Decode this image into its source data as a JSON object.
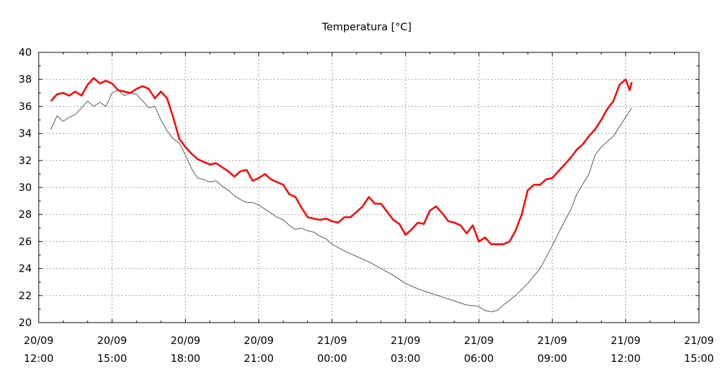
{
  "chart_data": {
    "type": "line",
    "title": "Temperatura [°C]",
    "xlabel": "",
    "ylabel": "",
    "ylim": [
      20,
      40
    ],
    "yticks": [
      20,
      22,
      24,
      26,
      28,
      30,
      32,
      34,
      36,
      38,
      40
    ],
    "xlim": [
      "2023-09-20T12:00",
      "2023-09-21T15:00"
    ],
    "xticks": [
      {
        "t": "2023-09-20T12:00",
        "line1": "20/09",
        "line2": "12:00"
      },
      {
        "t": "2023-09-20T15:00",
        "line1": "20/09",
        "line2": "15:00"
      },
      {
        "t": "2023-09-20T18:00",
        "line1": "20/09",
        "line2": "18:00"
      },
      {
        "t": "2023-09-20T21:00",
        "line1": "20/09",
        "line2": "21:00"
      },
      {
        "t": "2023-09-21T00:00",
        "line1": "21/09",
        "line2": "00:00"
      },
      {
        "t": "2023-09-21T03:00",
        "line1": "21/09",
        "line2": "03:00"
      },
      {
        "t": "2023-09-21T06:00",
        "line1": "21/09",
        "line2": "06:00"
      },
      {
        "t": "2023-09-21T09:00",
        "line1": "21/09",
        "line2": "09:00"
      },
      {
        "t": "2023-09-21T12:00",
        "line1": "21/09",
        "line2": "12:00"
      },
      {
        "t": "2023-09-21T15:00",
        "line1": "21/09",
        "line2": "15:00"
      }
    ],
    "grid": true,
    "series": [
      {
        "color": "#ff0000",
        "points": [
          [
            "2023-09-20T12:30",
            36.4
          ],
          [
            "2023-09-20T12:45",
            36.9
          ],
          [
            "2023-09-20T13:00",
            37.0
          ],
          [
            "2023-09-20T13:15",
            36.8
          ],
          [
            "2023-09-20T13:30",
            37.1
          ],
          [
            "2023-09-20T13:45",
            36.8
          ],
          [
            "2023-09-20T14:00",
            37.6
          ],
          [
            "2023-09-20T14:15",
            38.1
          ],
          [
            "2023-09-20T14:30",
            37.7
          ],
          [
            "2023-09-20T14:45",
            37.9
          ],
          [
            "2023-09-20T15:00",
            37.7
          ],
          [
            "2023-09-20T15:15",
            37.2
          ],
          [
            "2023-09-20T15:30",
            37.1
          ],
          [
            "2023-09-20T15:45",
            37.0
          ],
          [
            "2023-09-20T16:00",
            37.3
          ],
          [
            "2023-09-20T16:15",
            37.5
          ],
          [
            "2023-09-20T16:30",
            37.3
          ],
          [
            "2023-09-20T16:45",
            36.6
          ],
          [
            "2023-09-20T17:00",
            37.1
          ],
          [
            "2023-09-20T17:15",
            36.6
          ],
          [
            "2023-09-20T17:30",
            35.2
          ],
          [
            "2023-09-20T17:45",
            33.6
          ],
          [
            "2023-09-20T18:00",
            33.0
          ],
          [
            "2023-09-20T18:15",
            32.5
          ],
          [
            "2023-09-20T18:30",
            32.1
          ],
          [
            "2023-09-20T18:45",
            31.9
          ],
          [
            "2023-09-20T19:00",
            31.7
          ],
          [
            "2023-09-20T19:15",
            31.8
          ],
          [
            "2023-09-20T19:30",
            31.5
          ],
          [
            "2023-09-20T19:45",
            31.2
          ],
          [
            "2023-09-20T20:00",
            30.8
          ],
          [
            "2023-09-20T20:15",
            31.2
          ],
          [
            "2023-09-20T20:30",
            31.3
          ],
          [
            "2023-09-20T20:45",
            30.5
          ],
          [
            "2023-09-20T21:00",
            30.7
          ],
          [
            "2023-09-20T21:15",
            31.0
          ],
          [
            "2023-09-20T21:30",
            30.6
          ],
          [
            "2023-09-20T21:45",
            30.4
          ],
          [
            "2023-09-20T22:00",
            30.2
          ],
          [
            "2023-09-20T22:15",
            29.5
          ],
          [
            "2023-09-20T22:30",
            29.3
          ],
          [
            "2023-09-20T22:45",
            28.5
          ],
          [
            "2023-09-20T23:00",
            27.8
          ],
          [
            "2023-09-20T23:15",
            27.7
          ],
          [
            "2023-09-20T23:30",
            27.6
          ],
          [
            "2023-09-20T23:45",
            27.7
          ],
          [
            "2023-09-21T00:00",
            27.5
          ],
          [
            "2023-09-21T00:15",
            27.4
          ],
          [
            "2023-09-21T00:30",
            27.8
          ],
          [
            "2023-09-21T00:45",
            27.8
          ],
          [
            "2023-09-21T01:00",
            28.2
          ],
          [
            "2023-09-21T01:15",
            28.6
          ],
          [
            "2023-09-21T01:30",
            29.3
          ],
          [
            "2023-09-21T01:45",
            28.8
          ],
          [
            "2023-09-21T02:00",
            28.8
          ],
          [
            "2023-09-21T02:15",
            28.2
          ],
          [
            "2023-09-21T02:30",
            27.6
          ],
          [
            "2023-09-21T02:45",
            27.3
          ],
          [
            "2023-09-21T03:00",
            26.5
          ],
          [
            "2023-09-21T03:15",
            26.9
          ],
          [
            "2023-09-21T03:30",
            27.4
          ],
          [
            "2023-09-21T03:45",
            27.3
          ],
          [
            "2023-09-21T04:00",
            28.3
          ],
          [
            "2023-09-21T04:15",
            28.6
          ],
          [
            "2023-09-21T04:30",
            28.1
          ],
          [
            "2023-09-21T04:45",
            27.5
          ],
          [
            "2023-09-21T05:00",
            27.4
          ],
          [
            "2023-09-21T05:15",
            27.2
          ],
          [
            "2023-09-21T05:30",
            26.6
          ],
          [
            "2023-09-21T05:45",
            27.2
          ],
          [
            "2023-09-21T06:00",
            26.0
          ],
          [
            "2023-09-21T06:15",
            26.3
          ],
          [
            "2023-09-21T06:30",
            25.8
          ],
          [
            "2023-09-21T06:45",
            25.8
          ],
          [
            "2023-09-21T07:00",
            25.8
          ],
          [
            "2023-09-21T07:15",
            26.0
          ],
          [
            "2023-09-21T07:30",
            26.8
          ],
          [
            "2023-09-21T07:45",
            28.0
          ],
          [
            "2023-09-21T08:00",
            29.8
          ],
          [
            "2023-09-21T08:15",
            30.2
          ],
          [
            "2023-09-21T08:30",
            30.2
          ],
          [
            "2023-09-21T08:45",
            30.6
          ],
          [
            "2023-09-21T09:00",
            30.7
          ],
          [
            "2023-09-21T09:15",
            31.2
          ],
          [
            "2023-09-21T09:30",
            31.7
          ],
          [
            "2023-09-21T09:45",
            32.2
          ],
          [
            "2023-09-21T10:00",
            32.8
          ],
          [
            "2023-09-21T10:15",
            33.2
          ],
          [
            "2023-09-21T10:30",
            33.8
          ],
          [
            "2023-09-21T10:45",
            34.3
          ],
          [
            "2023-09-21T11:00",
            35.0
          ],
          [
            "2023-09-21T11:15",
            35.8
          ],
          [
            "2023-09-21T11:30",
            36.4
          ],
          [
            "2023-09-21T11:45",
            37.6
          ],
          [
            "2023-09-21T12:00",
            38.0
          ],
          [
            "2023-09-21T12:10",
            37.2
          ],
          [
            "2023-09-21T12:15",
            37.8
          ]
        ]
      },
      {
        "color": "#555555",
        "points": [
          [
            "2023-09-20T12:30",
            34.3
          ],
          [
            "2023-09-20T12:45",
            35.3
          ],
          [
            "2023-09-20T13:00",
            34.9
          ],
          [
            "2023-09-20T13:15",
            35.2
          ],
          [
            "2023-09-20T13:30",
            35.4
          ],
          [
            "2023-09-20T13:45",
            35.9
          ],
          [
            "2023-09-20T14:00",
            36.4
          ],
          [
            "2023-09-20T14:15",
            36.0
          ],
          [
            "2023-09-20T14:30",
            36.3
          ],
          [
            "2023-09-20T14:45",
            36.0
          ],
          [
            "2023-09-20T15:00",
            37.0
          ],
          [
            "2023-09-20T15:15",
            37.2
          ],
          [
            "2023-09-20T15:30",
            36.8
          ],
          [
            "2023-09-20T15:45",
            37.0
          ],
          [
            "2023-09-20T16:00",
            36.9
          ],
          [
            "2023-09-20T16:15",
            36.4
          ],
          [
            "2023-09-20T16:30",
            35.9
          ],
          [
            "2023-09-20T16:45",
            36.0
          ],
          [
            "2023-09-20T17:00",
            35.0
          ],
          [
            "2023-09-20T17:15",
            34.2
          ],
          [
            "2023-09-20T17:30",
            33.6
          ],
          [
            "2023-09-20T17:45",
            33.3
          ],
          [
            "2023-09-20T18:00",
            32.4
          ],
          [
            "2023-09-20T18:15",
            31.4
          ],
          [
            "2023-09-20T18:30",
            30.7
          ],
          [
            "2023-09-20T18:45",
            30.6
          ],
          [
            "2023-09-20T19:00",
            30.4
          ],
          [
            "2023-09-20T19:15",
            30.5
          ],
          [
            "2023-09-20T19:30",
            30.1
          ],
          [
            "2023-09-20T19:45",
            29.8
          ],
          [
            "2023-09-20T20:00",
            29.4
          ],
          [
            "2023-09-20T20:15",
            29.1
          ],
          [
            "2023-09-20T20:30",
            28.9
          ],
          [
            "2023-09-20T20:45",
            28.9
          ],
          [
            "2023-09-20T21:00",
            28.7
          ],
          [
            "2023-09-20T21:15",
            28.4
          ],
          [
            "2023-09-20T21:30",
            28.1
          ],
          [
            "2023-09-20T21:45",
            27.8
          ],
          [
            "2023-09-20T22:00",
            27.6
          ],
          [
            "2023-09-20T22:15",
            27.2
          ],
          [
            "2023-09-20T22:30",
            26.9
          ],
          [
            "2023-09-20T22:45",
            27.0
          ],
          [
            "2023-09-20T23:00",
            26.8
          ],
          [
            "2023-09-20T23:15",
            26.7
          ],
          [
            "2023-09-20T23:30",
            26.4
          ],
          [
            "2023-09-20T23:45",
            26.2
          ],
          [
            "2023-09-21T00:00",
            25.8
          ],
          [
            "2023-09-21T00:30",
            25.3
          ],
          [
            "2023-09-21T01:00",
            24.9
          ],
          [
            "2023-09-21T01:30",
            24.5
          ],
          [
            "2023-09-21T02:00",
            24.0
          ],
          [
            "2023-09-21T02:30",
            23.5
          ],
          [
            "2023-09-21T03:00",
            22.9
          ],
          [
            "2023-09-21T03:30",
            22.5
          ],
          [
            "2023-09-21T04:00",
            22.2
          ],
          [
            "2023-09-21T04:30",
            21.9
          ],
          [
            "2023-09-21T05:00",
            21.6
          ],
          [
            "2023-09-21T05:30",
            21.3
          ],
          [
            "2023-09-21T06:00",
            21.2
          ],
          [
            "2023-09-21T06:15",
            20.9
          ],
          [
            "2023-09-21T06:30",
            20.8
          ],
          [
            "2023-09-21T06:45",
            20.9
          ],
          [
            "2023-09-21T07:00",
            21.3
          ],
          [
            "2023-09-21T07:30",
            22.0
          ],
          [
            "2023-09-21T08:00",
            22.9
          ],
          [
            "2023-09-21T08:30",
            24.0
          ],
          [
            "2023-09-21T09:00",
            25.7
          ],
          [
            "2023-09-21T09:30",
            27.5
          ],
          [
            "2023-09-21T09:45",
            28.3
          ],
          [
            "2023-09-21T10:00",
            29.5
          ],
          [
            "2023-09-21T10:30",
            31.0
          ],
          [
            "2023-09-21T10:45",
            32.4
          ],
          [
            "2023-09-21T11:00",
            33.0
          ],
          [
            "2023-09-21T11:30",
            33.8
          ],
          [
            "2023-09-21T11:45",
            34.5
          ],
          [
            "2023-09-21T12:00",
            35.2
          ],
          [
            "2023-09-21T12:15",
            35.9
          ]
        ]
      }
    ]
  }
}
